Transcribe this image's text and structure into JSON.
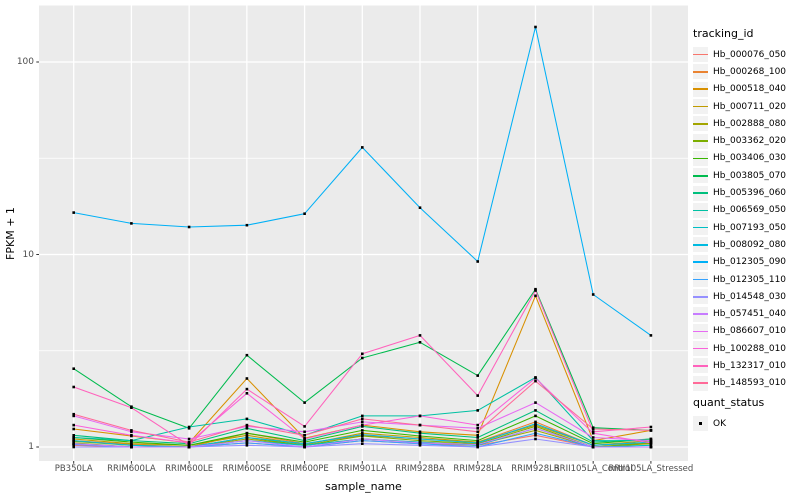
{
  "figure": {
    "background": "#FFFFFF",
    "panel_background": "#EBEBEB",
    "grid_color": "#FFFFFF",
    "tick_color": "#333333",
    "axis_text_color": "#4D4D4D",
    "point_color": "#000000"
  },
  "axes": {
    "x_title": "sample_name",
    "y_title": "FPKM + 1",
    "y_tick_labels": [
      "1",
      "10",
      "100"
    ]
  },
  "legend": {
    "tracking_title": "tracking_id",
    "quant_title": "quant_status",
    "quant_items": [
      {
        "label": "OK"
      }
    ],
    "key_fill": "#F2F2F2"
  },
  "chart_data": {
    "type": "line",
    "title": "",
    "xlabel": "sample_name",
    "ylabel": "FPKM + 1",
    "log_y": true,
    "ylim": [
      0.84,
      195
    ],
    "y_major_ticks": [
      1,
      10,
      100
    ],
    "y_minor_ticks": [
      3.1623,
      31.623
    ],
    "grid": true,
    "legend_position": "right",
    "point_marker": "black-square",
    "categories": [
      "PB350LA",
      "RRIM600LA",
      "RRIM600LE",
      "RRIM600SE",
      "RRIM600PE",
      "RRIM901LA",
      "RRIM928BA",
      "RRIM928LA",
      "RRIM928LB",
      "RRII105LA_Control",
      "RRII105LA_Stressed"
    ],
    "series": [
      {
        "name": "Hb_000076_050",
        "color": "#F8766D",
        "values": [
          1.02,
          1.0,
          1.0,
          1.05,
          1.0,
          1.08,
          1.04,
          1.02,
          1.15,
          1.0,
          1.0
        ]
      },
      {
        "name": "Hb_000268_100",
        "color": "#EA8331",
        "values": [
          1.08,
          1.03,
          1.0,
          1.18,
          1.04,
          1.15,
          1.1,
          1.06,
          1.35,
          1.02,
          1.05
        ]
      },
      {
        "name": "Hb_000518_040",
        "color": "#D89000",
        "values": [
          1.24,
          1.14,
          1.05,
          2.27,
          1.11,
          1.3,
          1.2,
          1.15,
          6.1,
          1.08,
          1.22
        ]
      },
      {
        "name": "Hb_000711_020",
        "color": "#C09B00",
        "values": [
          1.1,
          1.04,
          1.02,
          1.15,
          1.03,
          1.18,
          1.12,
          1.06,
          1.3,
          1.02,
          1.08
        ]
      },
      {
        "name": "Hb_002888_080",
        "color": "#A3A500",
        "values": [
          1.05,
          1.0,
          1.0,
          1.1,
          1.02,
          1.1,
          1.06,
          1.03,
          1.22,
          1.0,
          1.04
        ]
      },
      {
        "name": "Hb_003362_020",
        "color": "#7CAE00",
        "values": [
          1.07,
          1.02,
          1.0,
          1.12,
          1.02,
          1.14,
          1.08,
          1.04,
          1.28,
          1.0,
          1.05
        ]
      },
      {
        "name": "Hb_003406_030",
        "color": "#39B600",
        "values": [
          1.12,
          1.06,
          1.02,
          1.18,
          1.06,
          1.22,
          1.14,
          1.08,
          1.45,
          1.04,
          1.1
        ]
      },
      {
        "name": "Hb_003805_070",
        "color": "#00BB4E",
        "values": [
          2.55,
          1.62,
          1.25,
          3.0,
          1.7,
          2.9,
          3.5,
          2.35,
          6.6,
          1.26,
          1.22
        ]
      },
      {
        "name": "Hb_005396_060",
        "color": "#00BF7D",
        "values": [
          1.15,
          1.08,
          1.04,
          1.25,
          1.08,
          1.28,
          1.18,
          1.12,
          1.55,
          1.06,
          1.1
        ]
      },
      {
        "name": "Hb_006569_050",
        "color": "#00C1A3",
        "values": [
          1.12,
          1.08,
          1.27,
          1.4,
          1.15,
          1.45,
          1.45,
          1.55,
          2.3,
          1.08,
          1.08
        ]
      },
      {
        "name": "Hb_007193_050",
        "color": "#00BFC4",
        "values": [
          1.04,
          1.0,
          1.0,
          1.08,
          1.02,
          1.1,
          1.06,
          1.02,
          1.25,
          1.0,
          1.02
        ]
      },
      {
        "name": "Hb_008092_080",
        "color": "#00BAE0",
        "values": [
          1.08,
          1.02,
          1.0,
          1.12,
          1.04,
          1.16,
          1.1,
          1.05,
          1.32,
          1.02,
          1.06
        ]
      },
      {
        "name": "Hb_012305_090",
        "color": "#00B0F6",
        "values": [
          16.5,
          14.5,
          13.9,
          14.2,
          16.3,
          36.0,
          17.5,
          9.2,
          152.0,
          6.2,
          3.8
        ]
      },
      {
        "name": "Hb_012305_110",
        "color": "#35A2FF",
        "values": [
          1.03,
          1.0,
          1.0,
          1.05,
          1.0,
          1.08,
          1.04,
          1.0,
          1.18,
          1.0,
          1.0
        ]
      },
      {
        "name": "Hb_014548_030",
        "color": "#9590FF",
        "values": [
          1.0,
          1.0,
          1.0,
          1.02,
          1.0,
          1.04,
          1.02,
          1.0,
          1.1,
          1.0,
          1.0
        ]
      },
      {
        "name": "Hb_057451_040",
        "color": "#C77CFF",
        "values": [
          1.04,
          1.0,
          1.0,
          1.08,
          1.0,
          1.1,
          1.05,
          1.03,
          1.25,
          1.0,
          1.0
        ]
      },
      {
        "name": "Hb_086607_010",
        "color": "#E76BF3",
        "values": [
          1.45,
          1.2,
          1.1,
          1.28,
          1.2,
          1.35,
          1.3,
          1.25,
          1.7,
          1.12,
          1.08
        ]
      },
      {
        "name": "Hb_100288_010",
        "color": "#FA62DB",
        "values": [
          1.3,
          1.15,
          1.05,
          1.9,
          1.1,
          1.3,
          1.45,
          1.3,
          2.28,
          1.18,
          1.05
        ]
      },
      {
        "name": "Hb_132317_010",
        "color": "#FF62BC",
        "values": [
          2.05,
          1.6,
          1.02,
          2.0,
          1.28,
          3.05,
          3.8,
          1.85,
          6.5,
          1.2,
          1.27
        ]
      },
      {
        "name": "Hb_148593_010",
        "color": "#FF6A98",
        "values": [
          1.48,
          1.22,
          1.06,
          1.3,
          1.15,
          1.4,
          1.3,
          1.2,
          2.2,
          1.24,
          1.22
        ]
      }
    ]
  }
}
